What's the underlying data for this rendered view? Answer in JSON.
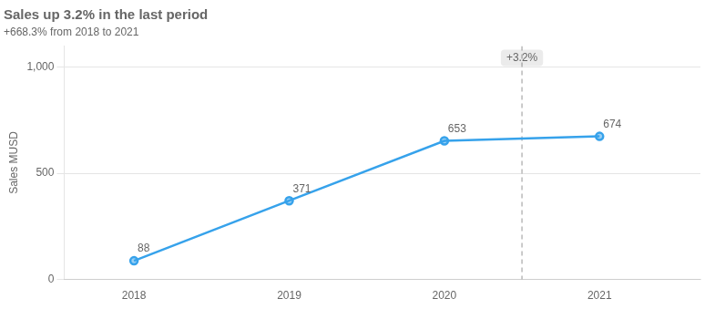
{
  "chart_data": {
    "type": "line",
    "title": "Sales up 3.2% in the last period",
    "subtitle": "+668.3% from 2018 to 2021",
    "x": [
      2018,
      2019,
      2020,
      2021
    ],
    "values": [
      88,
      371,
      653,
      674
    ],
    "xlim": [
      2017.55,
      2021.65
    ],
    "xticks": [
      2018,
      2019,
      2020,
      2021
    ],
    "ylim": [
      0,
      1100
    ],
    "yticks": [
      0,
      500,
      {
        "value": 1000,
        "label": "1,000"
      }
    ],
    "ylabel": "Sales MUSD",
    "grid": "y",
    "marker": "circle",
    "data_labels": true,
    "annotations": [
      {
        "x": 2020.5,
        "text": "+3.2%",
        "line_style": "dashed"
      }
    ]
  }
}
